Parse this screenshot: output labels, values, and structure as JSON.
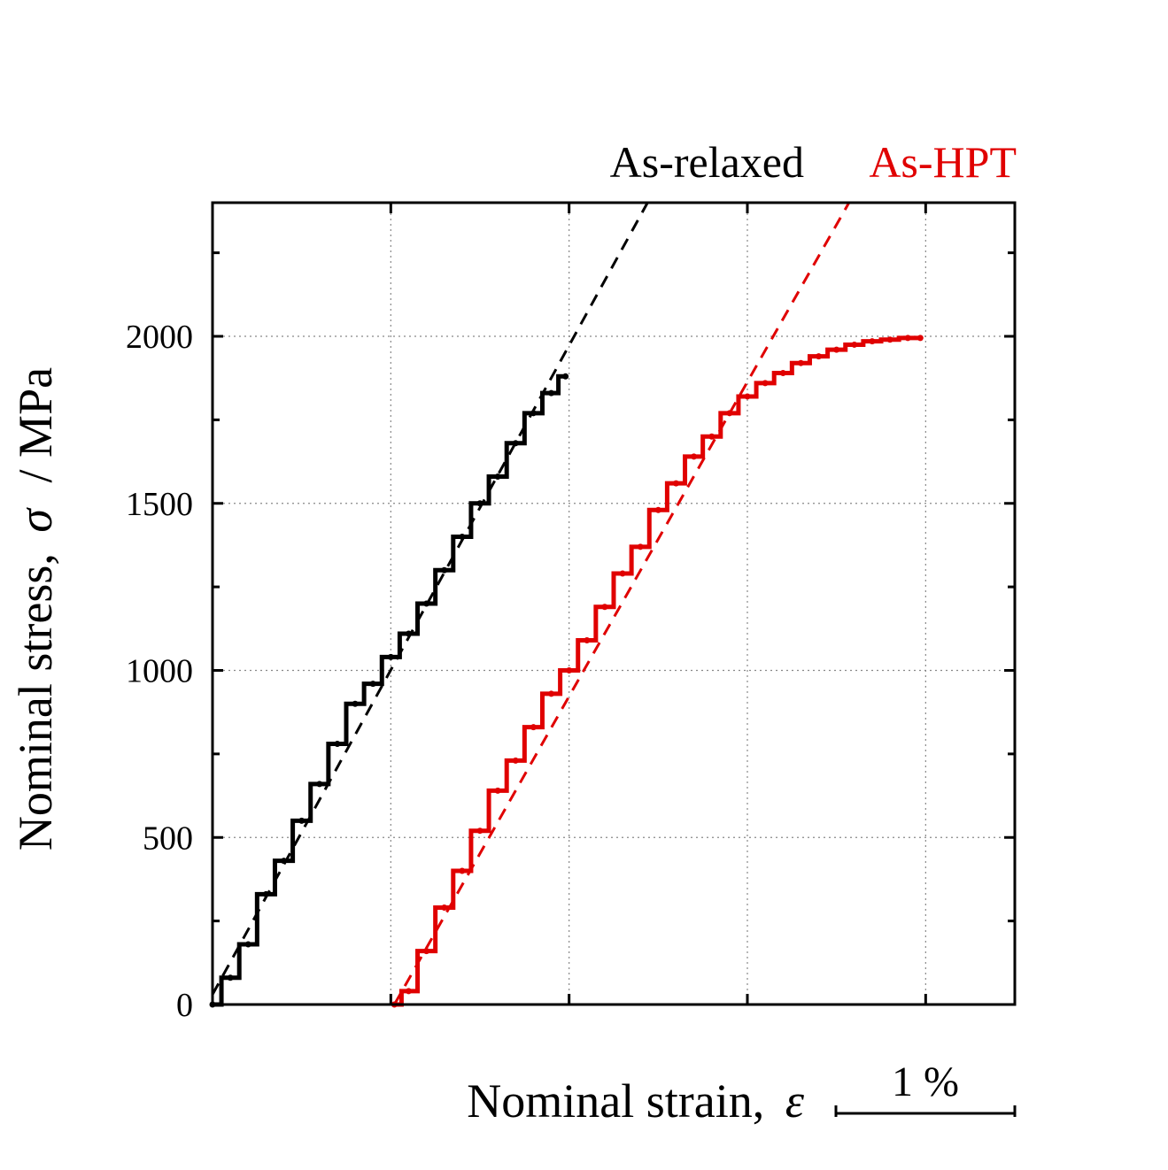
{
  "chart_data": {
    "type": "line",
    "title": "",
    "xlabel": "Nominal strain,",
    "xlabel_symbol": "ε",
    "ylabel": "Nominal stress,",
    "ylabel_symbol": "σ",
    "ylabel_unit": "/  MPa",
    "ylim": [
      0,
      2400
    ],
    "yticks": [
      "0",
      "500",
      "1000",
      "1500",
      "2000"
    ],
    "xlim": [
      0,
      4.5
    ],
    "x_scale_bar_label": "1 %",
    "x_grid_positions": [
      1,
      2,
      3,
      4
    ],
    "grid": true,
    "series": [
      {
        "name": "As-relaxed",
        "color": "#000000",
        "style": "stepped-measured",
        "x": [
          0.0,
          0.1,
          0.2,
          0.3,
          0.4,
          0.5,
          0.6,
          0.7,
          0.8,
          0.9,
          1.0,
          1.1,
          1.2,
          1.3,
          1.4,
          1.5,
          1.6,
          1.7,
          1.8,
          1.9,
          1.98
        ],
        "y": [
          0,
          80,
          180,
          330,
          430,
          550,
          660,
          780,
          900,
          960,
          1040,
          1110,
          1200,
          1300,
          1400,
          1500,
          1580,
          1680,
          1770,
          1830,
          1880
        ]
      },
      {
        "name": "As-relaxed fit",
        "color": "#000000",
        "style": "dashed",
        "x": [
          0.0,
          2.44
        ],
        "y": [
          30,
          2400
        ]
      },
      {
        "name": "As-HPT",
        "color": "#e00000",
        "style": "stepped-measured",
        "x": [
          1.02,
          1.1,
          1.2,
          1.3,
          1.4,
          1.5,
          1.6,
          1.7,
          1.8,
          1.9,
          2.0,
          2.1,
          2.2,
          2.3,
          2.4,
          2.5,
          2.6,
          2.7,
          2.8,
          2.9,
          3.0,
          3.1,
          3.2,
          3.3,
          3.4,
          3.5,
          3.6,
          3.7,
          3.8,
          3.9,
          3.97
        ],
        "y": [
          0,
          40,
          160,
          290,
          400,
          520,
          640,
          730,
          830,
          930,
          1000,
          1090,
          1190,
          1290,
          1370,
          1480,
          1560,
          1640,
          1700,
          1770,
          1820,
          1860,
          1890,
          1920,
          1940,
          1960,
          1975,
          1985,
          1990,
          1995,
          1995
        ]
      },
      {
        "name": "As-HPT fit",
        "color": "#e00000",
        "style": "dashed",
        "x": [
          1.02,
          3.57
        ],
        "y": [
          0,
          2400
        ]
      }
    ],
    "legend": [
      "As-relaxed",
      "As-HPT"
    ],
    "legend_colors": [
      "#000000",
      "#e00000"
    ],
    "legend_position": "top"
  }
}
